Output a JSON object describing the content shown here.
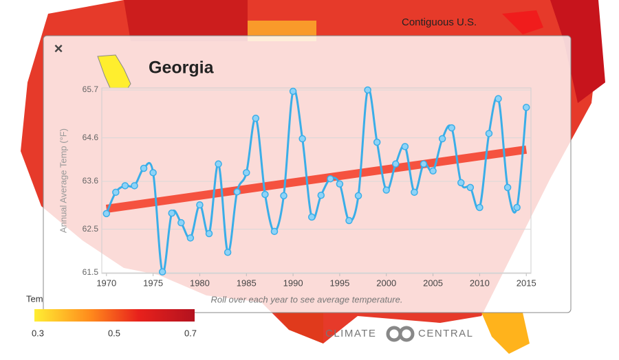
{
  "map_label": "Contiguous U.S.",
  "close_button": "×",
  "color_legend": {
    "title": "Tem",
    "ticks": [
      0.3,
      0.5,
      0.7
    ]
  },
  "logo": {
    "left": "CLIMATE",
    "right": "CENTRAL"
  },
  "chart_data": {
    "type": "line",
    "title": "Georgia",
    "y_label": "Annual Average Temp (°F)",
    "note": "Roll over each year to see average temperature.",
    "x": [
      1970,
      1971,
      1972,
      1973,
      1974,
      1975,
      1976,
      1977,
      1978,
      1979,
      1980,
      1981,
      1982,
      1983,
      1984,
      1985,
      1986,
      1987,
      1988,
      1989,
      1990,
      1991,
      1992,
      1993,
      1994,
      1995,
      1996,
      1997,
      1998,
      1999,
      2000,
      2001,
      2002,
      2003,
      2004,
      2005,
      2006,
      2007,
      2008,
      2009,
      2010,
      2011,
      2012,
      2013,
      2014,
      2015
    ],
    "series": [
      {
        "color": "#3aaee8",
        "values": [
          62.86,
          63.35,
          63.5,
          63.5,
          63.9,
          63.8,
          61.52,
          62.87,
          62.65,
          62.3,
          63.06,
          62.4,
          64.0,
          61.97,
          63.36,
          63.8,
          65.05,
          63.3,
          62.45,
          63.27,
          65.67,
          64.58,
          62.78,
          63.28,
          63.66,
          63.54,
          62.7,
          63.27,
          65.7,
          64.5,
          63.4,
          64.0,
          64.4,
          63.35,
          64.0,
          63.84,
          64.58,
          64.83,
          63.57,
          63.46,
          63.0,
          64.7,
          65.5,
          63.46,
          63.0,
          65.3
        ]
      }
    ],
    "trend": {
      "x": [
        1970,
        2015
      ],
      "values": [
        62.97,
        64.33
      ],
      "color": "#f4432f"
    },
    "xlim": [
      1969.5,
      2015.5
    ],
    "xticks": [
      1970,
      1975,
      1980,
      1985,
      1990,
      1995,
      2000,
      2005,
      2010,
      2015
    ],
    "ylim": [
      61.5,
      65.7
    ],
    "yticks": [
      61.5,
      62.5,
      63.6,
      64.6,
      65.7
    ],
    "grid": true
  }
}
